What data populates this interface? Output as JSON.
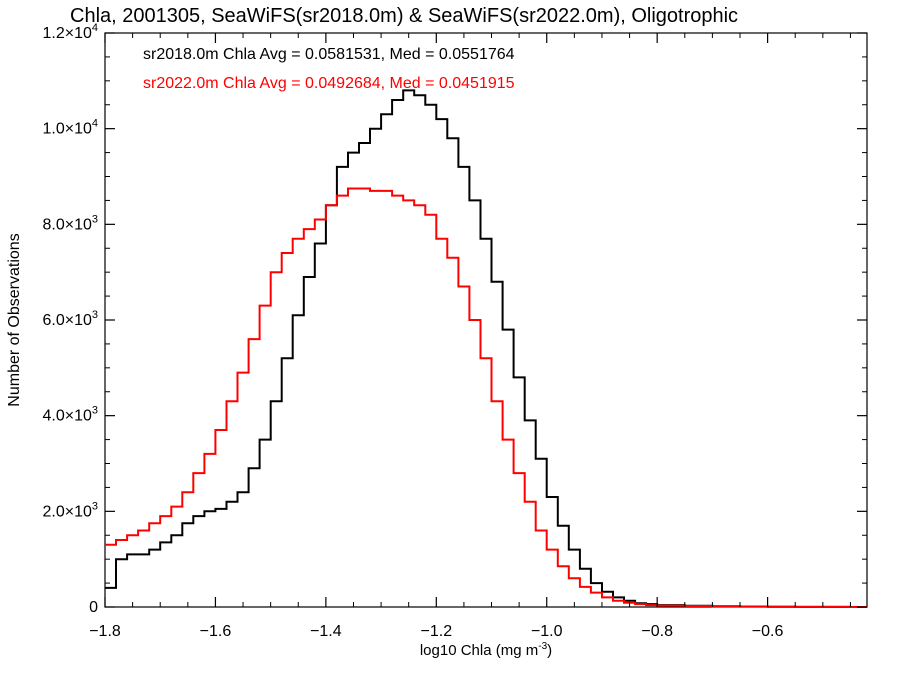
{
  "chart_data": {
    "type": "line",
    "title": "Chla, 2001305, SeaWiFS(sr2018.0m) & SeaWiFS(sr2022.0m), Oligotrophic",
    "xlabel": "log10 Chla (mg m",
    "xlabel_sup": "-3",
    "xlabel_tail": ")",
    "ylabel": "Number of Observations",
    "xlim": [
      -1.8,
      -0.42
    ],
    "ylim": [
      0,
      12000
    ],
    "x_ticks": [
      -1.8,
      -1.6,
      -1.4,
      -1.2,
      -1.0,
      -0.8,
      -0.6
    ],
    "x_tick_labels": [
      "−1.8",
      "−1.6",
      "−1.4",
      "−1.2",
      "−1.0",
      "−0.8",
      "−0.6"
    ],
    "y_ticks": [
      0,
      2000,
      4000,
      6000,
      8000,
      10000,
      12000
    ],
    "y_tick_labels": [
      {
        "base": "0",
        "exp": ""
      },
      {
        "base": "2.0×10",
        "exp": "3"
      },
      {
        "base": "4.0×10",
        "exp": "3"
      },
      {
        "base": "6.0×10",
        "exp": "3"
      },
      {
        "base": "8.0×10",
        "exp": "3"
      },
      {
        "base": "1.0×10",
        "exp": "4"
      },
      {
        "base": "1.2×10",
        "exp": "4"
      }
    ],
    "annotations": [
      {
        "text": "sr2018.0m Chla Avg = 0.0581531, Med = 0.0551764",
        "color": "#000000"
      },
      {
        "text": "sr2022.0m Chla Avg = 0.0492684, Med = 0.0451915",
        "color": "#ff0000"
      }
    ],
    "grid": false,
    "series": [
      {
        "color": "#000000",
        "x": [
          -1.8,
          -1.78,
          -1.76,
          -1.74,
          -1.72,
          -1.7,
          -1.68,
          -1.66,
          -1.64,
          -1.62,
          -1.6,
          -1.58,
          -1.56,
          -1.54,
          -1.52,
          -1.5,
          -1.48,
          -1.46,
          -1.44,
          -1.42,
          -1.4,
          -1.38,
          -1.36,
          -1.34,
          -1.32,
          -1.3,
          -1.28,
          -1.26,
          -1.24,
          -1.22,
          -1.2,
          -1.18,
          -1.16,
          -1.14,
          -1.12,
          -1.1,
          -1.08,
          -1.06,
          -1.04,
          -1.02,
          -1.0,
          -0.98,
          -0.96,
          -0.94,
          -0.92,
          -0.9,
          -0.88,
          -0.86,
          -0.84,
          -0.82,
          -0.8,
          -0.75,
          -0.7,
          -0.65,
          -0.6,
          -0.55,
          -0.5,
          -0.45,
          -0.42
        ],
        "y": [
          400,
          1000,
          1100,
          1100,
          1200,
          1350,
          1500,
          1750,
          1900,
          2000,
          2050,
          2200,
          2400,
          2900,
          3500,
          4300,
          5200,
          6100,
          6900,
          7600,
          8400,
          9200,
          9500,
          9700,
          10000,
          10300,
          10600,
          10800,
          10700,
          10500,
          10200,
          9800,
          9200,
          8500,
          7700,
          6800,
          5800,
          4800,
          3900,
          3100,
          2300,
          1700,
          1200,
          800,
          500,
          320,
          200,
          130,
          80,
          60,
          40,
          25,
          15,
          10,
          5,
          3,
          2,
          1,
          0
        ]
      },
      {
        "color": "#ff0000",
        "x": [
          -1.8,
          -1.78,
          -1.76,
          -1.74,
          -1.72,
          -1.7,
          -1.68,
          -1.66,
          -1.64,
          -1.62,
          -1.6,
          -1.58,
          -1.56,
          -1.54,
          -1.52,
          -1.5,
          -1.48,
          -1.46,
          -1.44,
          -1.42,
          -1.4,
          -1.38,
          -1.36,
          -1.34,
          -1.32,
          -1.3,
          -1.28,
          -1.26,
          -1.24,
          -1.22,
          -1.2,
          -1.18,
          -1.16,
          -1.14,
          -1.12,
          -1.1,
          -1.08,
          -1.06,
          -1.04,
          -1.02,
          -1.0,
          -0.98,
          -0.96,
          -0.94,
          -0.92,
          -0.9,
          -0.88,
          -0.86,
          -0.84,
          -0.82,
          -0.8,
          -0.75,
          -0.7,
          -0.65,
          -0.6,
          -0.55,
          -0.5,
          -0.45,
          -0.42
        ],
        "y": [
          1300,
          1400,
          1500,
          1600,
          1750,
          1900,
          2100,
          2400,
          2800,
          3200,
          3700,
          4300,
          4900,
          5600,
          6300,
          7000,
          7400,
          7700,
          7900,
          8100,
          8400,
          8600,
          8750,
          8750,
          8700,
          8700,
          8600,
          8500,
          8400,
          8200,
          7700,
          7300,
          6700,
          6000,
          5200,
          4300,
          3500,
          2800,
          2200,
          1600,
          1200,
          850,
          600,
          420,
          300,
          200,
          130,
          90,
          60,
          40,
          30,
          20,
          12,
          8,
          5,
          3,
          2,
          1,
          0
        ]
      }
    ]
  }
}
